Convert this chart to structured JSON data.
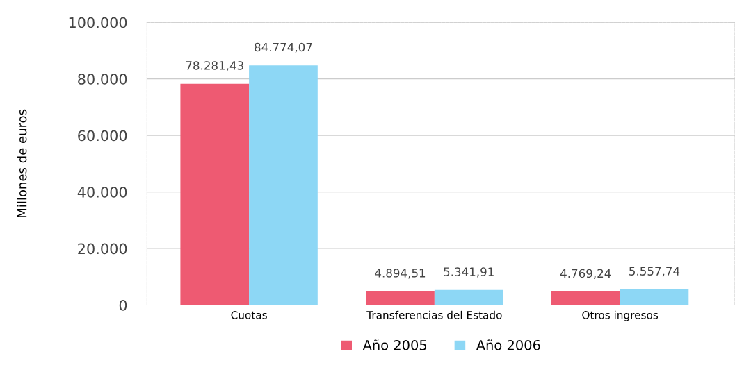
{
  "chart_data": {
    "type": "bar",
    "ylabel": "Millones de euros",
    "categories": [
      "Cuotas",
      "Transferencias del Estado",
      "Otros ingresos"
    ],
    "series": [
      {
        "name": "Año 2005",
        "color": "#ee5a72",
        "values": [
          78281.43,
          4894.51,
          4769.24
        ],
        "value_labels": [
          "78.281,43",
          "4.894,51",
          "4.769,24"
        ]
      },
      {
        "name": "Año 2006",
        "color": "#8dd7f5",
        "values": [
          84774.07,
          5341.91,
          5557.74
        ],
        "value_labels": [
          "84.774,07",
          "5.341,91",
          "5.557,74"
        ]
      }
    ],
    "ylim": [
      0,
      100000
    ],
    "yticks": [
      {
        "value": 0,
        "label": "0"
      },
      {
        "value": 20000,
        "label": "20.000"
      },
      {
        "value": 40000,
        "label": "40.000"
      },
      {
        "value": 60000,
        "label": "60.000"
      },
      {
        "value": 80000,
        "label": "80.000"
      },
      {
        "value": 100000,
        "label": "100.000"
      }
    ],
    "grid": "y",
    "legend": "bottom"
  }
}
